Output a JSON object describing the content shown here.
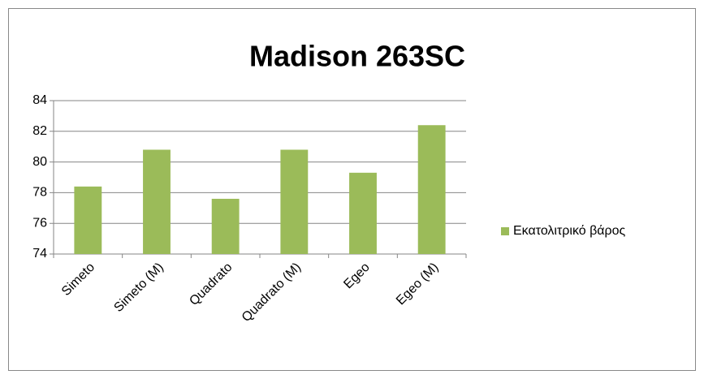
{
  "chart_data": {
    "type": "bar",
    "title": "Madison 263SC",
    "categories": [
      "Simeto",
      "Simeto (M)",
      "Quadrato",
      "Quadrato (M)",
      "Egeo",
      "Egeo (M)"
    ],
    "series": [
      {
        "name": "Εκατολιτρικό βάρος",
        "color": "#9bbb59",
        "values": [
          78.4,
          80.8,
          77.6,
          80.8,
          79.3,
          82.4
        ]
      }
    ],
    "ylim": [
      74,
      84
    ],
    "yticks": [
      74,
      76,
      78,
      80,
      82,
      84
    ],
    "grid": true,
    "legend": "right"
  }
}
